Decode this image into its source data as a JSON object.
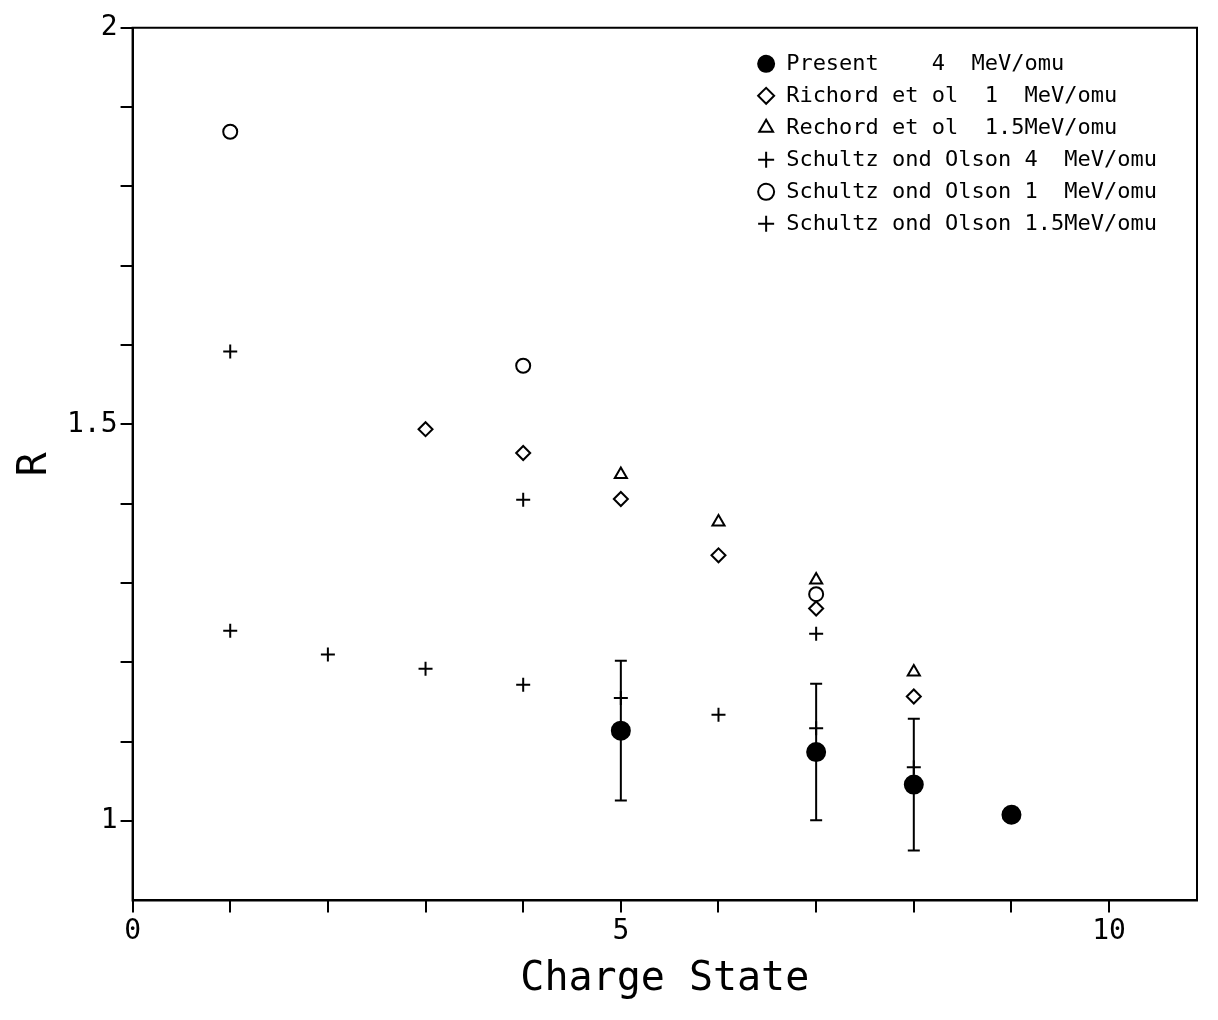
{
  "chart_data": {
    "type": "scatter",
    "xlabel": "Charge State",
    "ylabel": "R",
    "xlim": [
      0,
      10.9
    ],
    "ylim": [
      0.9,
      2
    ],
    "xticks": [
      0,
      {
        "value": 1,
        "label": null
      },
      {
        "value": 2,
        "label": null
      },
      {
        "value": 3,
        "label": null
      },
      {
        "value": 4,
        "label": null
      },
      5,
      {
        "value": 6,
        "label": null
      },
      {
        "value": 7,
        "label": null
      },
      {
        "value": 8,
        "label": null
      },
      {
        "value": 9,
        "label": null
      },
      10
    ],
    "yticks": [
      1,
      {
        "value": 1.1,
        "label": null
      },
      {
        "value": 1.2,
        "label": null
      },
      {
        "value": 1.3,
        "label": null
      },
      {
        "value": 1.4,
        "label": null
      },
      1.5,
      {
        "value": 1.6,
        "label": null
      },
      {
        "value": 1.7,
        "label": null
      },
      {
        "value": 1.8,
        "label": null
      },
      {
        "value": 1.9,
        "label": null
      },
      2
    ],
    "grid": false,
    "legend": "top right",
    "series": [
      {
        "name": "Present    4  MeV/omu",
        "color": "#000000",
        "marker": "circle",
        "x": [
          5,
          7,
          8,
          9
        ],
        "values": [
          1.114,
          1.087,
          1.046,
          1.008
        ],
        "errors": [
          0.088,
          0.086,
          0.083,
          null
        ]
      },
      {
        "name": "Richord et ol  1  MeV/omu",
        "color": "#000000",
        "marker": "diamond",
        "x": [
          3,
          4,
          5,
          6,
          7,
          8
        ],
        "values": [
          1.494,
          1.464,
          1.406,
          1.335,
          1.268,
          1.157
        ]
      },
      {
        "name": "Rechord et ol  1.5MeV/omu",
        "color": "#000000",
        "marker": "triangle",
        "x": [
          5,
          6,
          7,
          8
        ],
        "values": [
          1.437,
          1.377,
          1.304,
          1.188
        ]
      },
      {
        "name": "Schultz ond Olson 4  MeV/omu",
        "color": "#000000",
        "marker": "cross",
        "x": [
          1,
          2,
          3,
          4,
          5,
          6,
          7,
          8
        ],
        "values": [
          1.24,
          1.21,
          1.192,
          1.172,
          1.155,
          1.134,
          1.117,
          1.068
        ]
      },
      {
        "name": "Schultz ond Olson 1  MeV/omu",
        "color": "#000000",
        "marker": "circle",
        "x": [
          1,
          4,
          7
        ],
        "values": [
          1.869,
          1.574,
          1.286
        ]
      },
      {
        "name": "Schultz ond Olson 1.5MeV/omu",
        "color": "#000000",
        "marker": "cross",
        "x": [
          1,
          4,
          7
        ],
        "values": [
          1.592,
          1.405,
          1.236
        ]
      }
    ]
  }
}
